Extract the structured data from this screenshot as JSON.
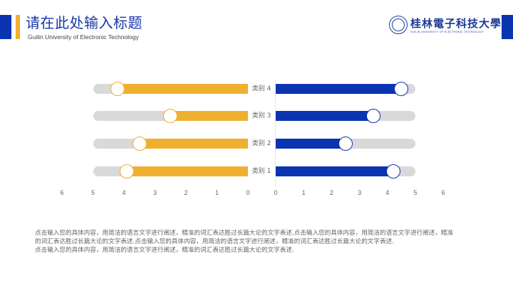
{
  "header": {
    "title": "请在此处输入标题",
    "subtitle": "Guilin University of Electronic Technology",
    "logo": {
      "name_cn": "桂林電子科技大學",
      "name_en": "GUILIN UNIVERSITY OF ELECTRONIC TECHNOLOGY",
      "emblem_icon": "university-emblem-icon"
    }
  },
  "colors": {
    "blue": "#0a34b0",
    "yellow": "#f0b02f",
    "track": "#d9d9d9",
    "title": "#1537a8"
  },
  "chart_data": {
    "type": "bar",
    "subtype": "diverging-horizontal-bar",
    "categories": [
      "类别 4",
      "类别 3",
      "类别 2",
      "类别 1"
    ],
    "series": [
      {
        "name": "left (yellow)",
        "color": "#f0b02f",
        "values": [
          4.2,
          2.5,
          3.5,
          3.9
        ]
      },
      {
        "name": "right (blue)",
        "color": "#0a34b0",
        "values": [
          4.5,
          3.5,
          2.5,
          4.2
        ]
      }
    ],
    "background_track_max": 5,
    "title": "",
    "xlabel": "",
    "ylabel": "",
    "left_axis_ticks": [
      "6",
      "5",
      "4",
      "3",
      "2",
      "1",
      "0"
    ],
    "right_axis_ticks": [
      "0",
      "1",
      "2",
      "3",
      "4",
      "5",
      "6"
    ],
    "xlim": [
      0,
      6
    ],
    "grid": false,
    "legend": "none"
  },
  "body_text": [
    "点击输入您的具体内容，用简洁的语言文字进行阐述，精准的词汇表达胜过长篇大论的文字表述.点击输入您的具体内容，用简洁的语言文字进行阐述，精准",
    "的词汇表达胜过长篇大论的文字表述.点击输入您的具体内容，用简洁的语言文字进行阐述，精准的词汇表达胜过长篇大论的文字表述.",
    "点击输入您的具体内容，用简洁的语言文字进行阐述，精准的词汇表达胜过长篇大论的文字表述."
  ]
}
